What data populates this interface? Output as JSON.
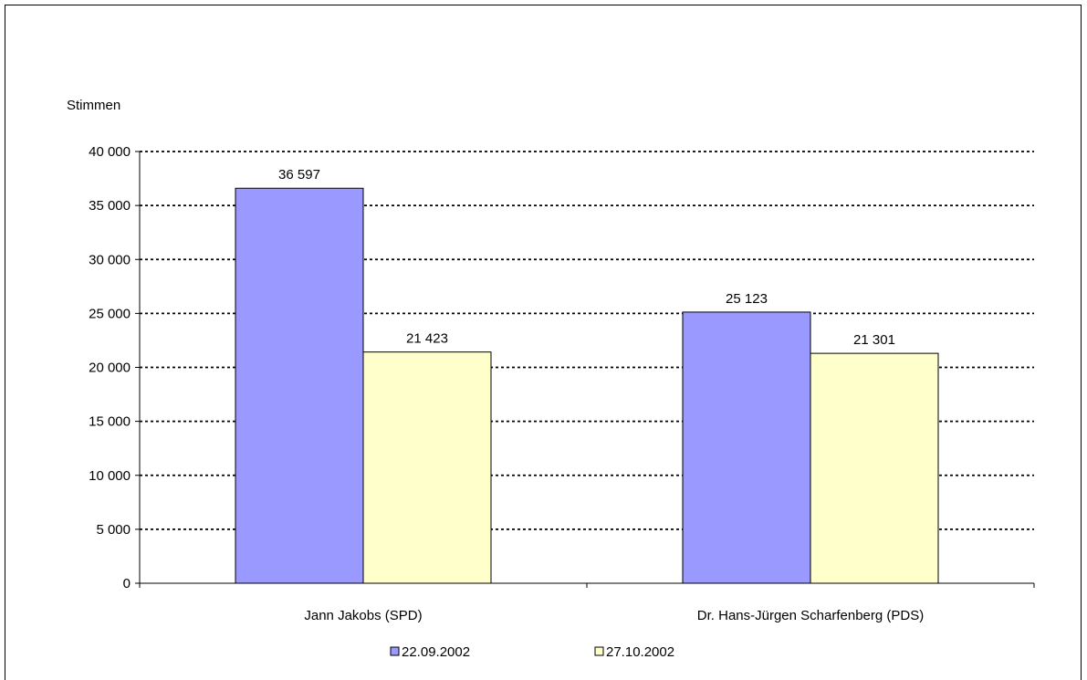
{
  "chart_data": {
    "type": "bar",
    "ylabel": "Stimmen",
    "categories": [
      "Jann Jakobs (SPD)",
      "Dr. Hans-Jürgen Scharfenberg (PDS)"
    ],
    "series": [
      {
        "name": "22.09.2002",
        "values": [
          36597,
          25123
        ],
        "value_labels": [
          "36 597",
          "25 123"
        ],
        "color": "#9999ff"
      },
      {
        "name": "27.10.2002",
        "values": [
          21423,
          21301
        ],
        "value_labels": [
          "21 423",
          "21 301"
        ],
        "color": "#ffffcc"
      }
    ],
    "ylim": [
      0,
      40000
    ],
    "yticks": [
      0,
      5000,
      10000,
      15000,
      20000,
      25000,
      30000,
      35000,
      40000
    ],
    "ytick_labels": [
      "0",
      "5 000",
      "10 000",
      "15 000",
      "20 000",
      "25 000",
      "30 000",
      "35 000",
      "40 000"
    ],
    "grid": true,
    "legend": "bottom"
  }
}
